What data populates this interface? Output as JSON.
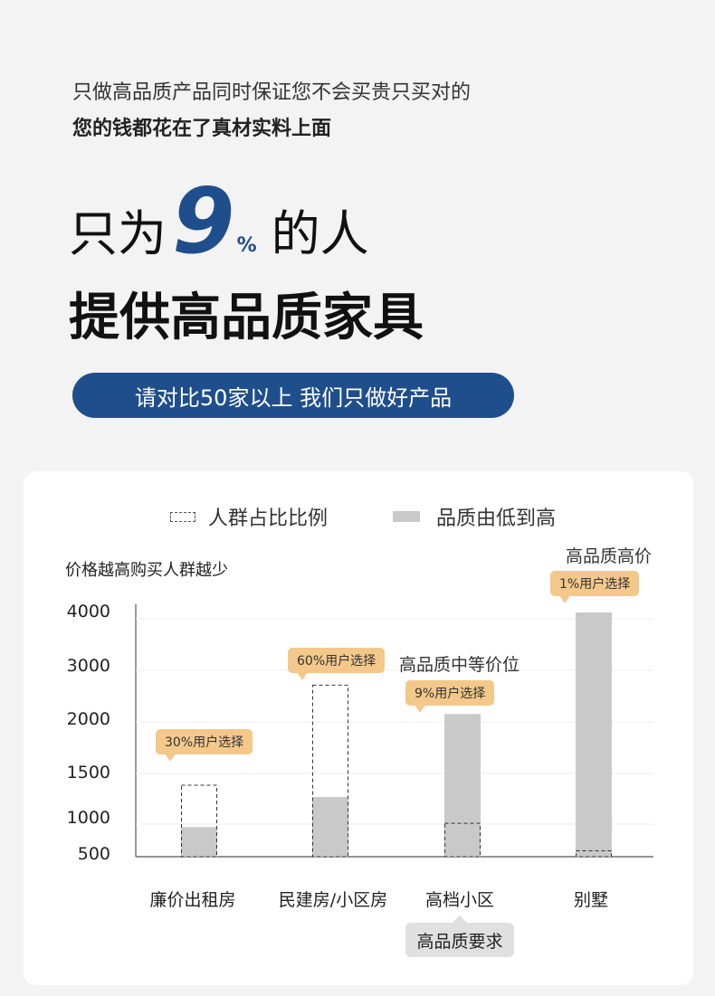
{
  "intro": {
    "line1": "只做高品质产品同时保证您不会买贵只买对的",
    "line2": "您的钱都花在了真材实料上面"
  },
  "headline": {
    "prefix": "只为",
    "number": "9",
    "percent": "%",
    "suffix": "的人",
    "line2": "提供高品质家具"
  },
  "pill": {
    "text": "请对比50家以上 我们只做好产品"
  },
  "colors": {
    "brand_blue": "#1f4e8c",
    "callout": "#f3c88a",
    "bar_fill": "#c9c9c9"
  },
  "chart_data": {
    "type": "bar",
    "title": "价格越高购买人群越少",
    "legend": [
      {
        "name": "人群占比比例",
        "style": "dashed-outline"
      },
      {
        "name": "品质由低到高",
        "style": "gray-fill"
      }
    ],
    "y_ticks": [
      "4000",
      "3000",
      "2000",
      "1500",
      "1000",
      "500"
    ],
    "categories": [
      "廉价出租房",
      "民建房/小区房",
      "高档小区",
      "别墅"
    ],
    "series": [
      {
        "name": "人群占比比例",
        "values": [
          1380,
          2700,
          950,
          580
        ]
      },
      {
        "name": "品质由低到高",
        "values": [
          900,
          1250,
          2150,
          4050
        ]
      }
    ],
    "callouts": [
      "30%用户选择",
      "60%用户选择",
      "9%用户选择",
      "1%用户选择"
    ],
    "tier_labels": [
      "高品质中等价位",
      "高品质高价"
    ],
    "x_badge": "高品质要求"
  }
}
